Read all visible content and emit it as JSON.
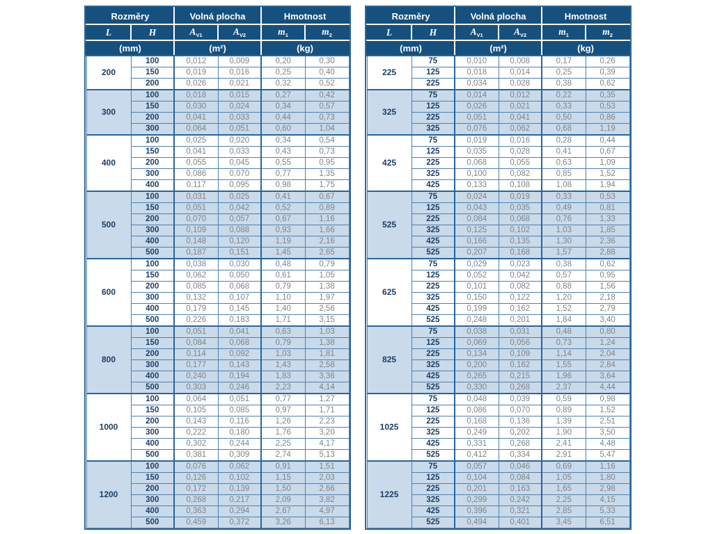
{
  "colors": {
    "header_bg": "#15507e",
    "header_text": "#ffffff",
    "shaded_row": "#c9daea",
    "grid_line": "#4d7fae",
    "strong_line": "#27659c",
    "outer_border": "#2f6898",
    "dark_text": "#1c3e63",
    "value_text": "#808285"
  },
  "header": {
    "rozmery": "Rozměry",
    "volna_plocha": "Volná plocha",
    "hmotnost": "Hmotnost",
    "l": "L",
    "h": "H",
    "av_base": "A",
    "av1_sub": "V1",
    "av2_sub": "V2",
    "m_base": "m",
    "m1_sub": "1",
    "m2_sub": "2",
    "unit_mm": "(mm)",
    "unit_m2": "(m²)",
    "unit_kg": "(kg)"
  },
  "left_table": {
    "groups": [
      {
        "l": "200",
        "rows": [
          [
            "100",
            "0,012",
            "0,009",
            "0,20",
            "0,30"
          ],
          [
            "150",
            "0,019",
            "0,016",
            "0,25",
            "0,40"
          ],
          [
            "200",
            "0,026",
            "0,021",
            "0,32",
            "0,52"
          ]
        ]
      },
      {
        "l": "300",
        "rows": [
          [
            "100",
            "0,018",
            "0,015",
            "0,27",
            "0,42"
          ],
          [
            "150",
            "0,030",
            "0,024",
            "0,34",
            "0,57"
          ],
          [
            "200",
            "0,041",
            "0,033",
            "0,44",
            "0,73"
          ],
          [
            "300",
            "0,064",
            "0,051",
            "0,60",
            "1,04"
          ]
        ]
      },
      {
        "l": "400",
        "rows": [
          [
            "100",
            "0,025",
            "0,020",
            "0,34",
            "0,54"
          ],
          [
            "150",
            "0,041",
            "0,033",
            "0,43",
            "0,73"
          ],
          [
            "200",
            "0,055",
            "0,045",
            "0,55",
            "0,95"
          ],
          [
            "300",
            "0,086",
            "0,070",
            "0,77",
            "1,35"
          ],
          [
            "400",
            "0,117",
            "0,095",
            "0,98",
            "1,75"
          ]
        ]
      },
      {
        "l": "500",
        "rows": [
          [
            "100",
            "0,031",
            "0,025",
            "0,41",
            "0,67"
          ],
          [
            "150",
            "0,051",
            "0,042",
            "0,52",
            "0,89"
          ],
          [
            "200",
            "0,070",
            "0,057",
            "0,67",
            "1,16"
          ],
          [
            "300",
            "0,109",
            "0,088",
            "0,93",
            "1,66"
          ],
          [
            "400",
            "0,148",
            "0,120",
            "1,19",
            "2,16"
          ],
          [
            "500",
            "0,187",
            "0,151",
            "1,45",
            "2,65"
          ]
        ]
      },
      {
        "l": "600",
        "rows": [
          [
            "100",
            "0,038",
            "0,030",
            "0,48",
            "0,79"
          ],
          [
            "150",
            "0,062",
            "0,050",
            "0,61",
            "1,05"
          ],
          [
            "200",
            "0,085",
            "0,068",
            "0,79",
            "1,38"
          ],
          [
            "300",
            "0,132",
            "0,107",
            "1,10",
            "1,97"
          ],
          [
            "400",
            "0,179",
            "0,145",
            "1,40",
            "2,56"
          ],
          [
            "500",
            "0,226",
            "0,183",
            "1,71",
            "3,15"
          ]
        ]
      },
      {
        "l": "800",
        "rows": [
          [
            "100",
            "0,051",
            "0,041",
            "0,63",
            "1,03"
          ],
          [
            "150",
            "0,084",
            "0,068",
            "0,79",
            "1,38"
          ],
          [
            "200",
            "0,114",
            "0,092",
            "1,03",
            "1,81"
          ],
          [
            "300",
            "0,177",
            "0,143",
            "1,43",
            "2,58"
          ],
          [
            "400",
            "0,240",
            "0,194",
            "1,83",
            "3,36"
          ],
          [
            "500",
            "0,303",
            "0,246",
            "2,23",
            "4,14"
          ]
        ]
      },
      {
        "l": "1000",
        "rows": [
          [
            "100",
            "0,064",
            "0,051",
            "0,77",
            "1,27"
          ],
          [
            "150",
            "0,105",
            "0,085",
            "0,97",
            "1,71"
          ],
          [
            "200",
            "0,143",
            "0,116",
            "1,26",
            "2,23"
          ],
          [
            "300",
            "0,222",
            "0,180",
            "1,76",
            "3,20"
          ],
          [
            "400",
            "0,302",
            "0,244",
            "2,25",
            "4,17"
          ],
          [
            "500",
            "0,381",
            "0,309",
            "2,74",
            "5,13"
          ]
        ]
      },
      {
        "l": "1200",
        "rows": [
          [
            "100",
            "0,076",
            "0,062",
            "0,91",
            "1,51"
          ],
          [
            "150",
            "0,126",
            "0,102",
            "1,15",
            "2,03"
          ],
          [
            "200",
            "0,172",
            "0,139",
            "1,50",
            "2,66"
          ],
          [
            "300",
            "0,268",
            "0,217",
            "2,09",
            "3,82"
          ],
          [
            "400",
            "0,363",
            "0,294",
            "2,67",
            "4,97"
          ],
          [
            "500",
            "0,459",
            "0,372",
            "3,26",
            "6,13"
          ]
        ]
      }
    ]
  },
  "right_table": {
    "groups": [
      {
        "l": "225",
        "rows": [
          [
            "75",
            "0,010",
            "0,008",
            "0,17",
            "0,26"
          ],
          [
            "125",
            "0,018",
            "0,014",
            "0,25",
            "0,39"
          ],
          [
            "225",
            "0,034",
            "0,028",
            "0,38",
            "0,62"
          ]
        ]
      },
      {
        "l": "325",
        "rows": [
          [
            "75",
            "0,014",
            "0,012",
            "0,22",
            "0,35"
          ],
          [
            "125",
            "0,026",
            "0,021",
            "0,33",
            "0,53"
          ],
          [
            "225",
            "0,051",
            "0,041",
            "0,50",
            "0,86"
          ],
          [
            "325",
            "0,076",
            "0,062",
            "0,68",
            "1,19"
          ]
        ]
      },
      {
        "l": "425",
        "rows": [
          [
            "75",
            "0,019",
            "0,016",
            "0,28",
            "0,44"
          ],
          [
            "125",
            "0,035",
            "0,028",
            "0,41",
            "0,67"
          ],
          [
            "225",
            "0,068",
            "0,055",
            "0,63",
            "1,09"
          ],
          [
            "325",
            "0,100",
            "0,082",
            "0,85",
            "1,52"
          ],
          [
            "425",
            "0,133",
            "0,108",
            "1,08",
            "1,94"
          ]
        ]
      },
      {
        "l": "525",
        "rows": [
          [
            "75",
            "0,024",
            "0,019",
            "0,33",
            "0,53"
          ],
          [
            "125",
            "0,043",
            "0,035",
            "0,49",
            "0,81"
          ],
          [
            "225",
            "0,084",
            "0,068",
            "0,76",
            "1,33"
          ],
          [
            "325",
            "0,125",
            "0,102",
            "1,03",
            "1,85"
          ],
          [
            "425",
            "0,166",
            "0,135",
            "1,30",
            "2,36"
          ],
          [
            "525",
            "0,207",
            "0,168",
            "1,57",
            "2,88"
          ]
        ]
      },
      {
        "l": "625",
        "rows": [
          [
            "75",
            "0,029",
            "0,023",
            "0,38",
            "0,62"
          ],
          [
            "125",
            "0,052",
            "0,042",
            "0,57",
            "0,95"
          ],
          [
            "225",
            "0,101",
            "0,082",
            "0,88",
            "1,56"
          ],
          [
            "325",
            "0,150",
            "0,122",
            "1,20",
            "2,18"
          ],
          [
            "425",
            "0,199",
            "0,162",
            "1,52",
            "2,79"
          ],
          [
            "525",
            "0,248",
            "0,201",
            "1,84",
            "3,40"
          ]
        ]
      },
      {
        "l": "825",
        "rows": [
          [
            "75",
            "0,038",
            "0,031",
            "0,48",
            "0,80"
          ],
          [
            "125",
            "0,069",
            "0,056",
            "0,73",
            "1,24"
          ],
          [
            "225",
            "0,134",
            "0,109",
            "1,14",
            "2,04"
          ],
          [
            "325",
            "0,200",
            "0,162",
            "1,55",
            "2,84"
          ],
          [
            "425",
            "0,265",
            "0,215",
            "1,96",
            "3,64"
          ],
          [
            "525",
            "0,330",
            "0,268",
            "2,37",
            "4,44"
          ]
        ]
      },
      {
        "l": "1025",
        "rows": [
          [
            "75",
            "0,048",
            "0,039",
            "0,59",
            "0,98"
          ],
          [
            "125",
            "0,086",
            "0,070",
            "0,89",
            "1,52"
          ],
          [
            "225",
            "0,168",
            "0,136",
            "1,39",
            "2,51"
          ],
          [
            "325",
            "0,249",
            "0,202",
            "1,90",
            "3,50"
          ],
          [
            "425",
            "0,331",
            "0,268",
            "2,41",
            "4,48"
          ],
          [
            "525",
            "0,412",
            "0,334",
            "2,91",
            "5,47"
          ]
        ]
      },
      {
        "l": "1225",
        "rows": [
          [
            "75",
            "0,057",
            "0,046",
            "0,69",
            "1,16"
          ],
          [
            "125",
            "0,104",
            "0,084",
            "1,05",
            "1,80"
          ],
          [
            "225",
            "0,201",
            "0,163",
            "1,65",
            "2,98"
          ],
          [
            "325",
            "0,299",
            "0,242",
            "2,25",
            "4,15"
          ],
          [
            "425",
            "0,396",
            "0,321",
            "2,85",
            "5,33"
          ],
          [
            "525",
            "0,494",
            "0,401",
            "3,45",
            "6,51"
          ]
        ]
      }
    ]
  }
}
